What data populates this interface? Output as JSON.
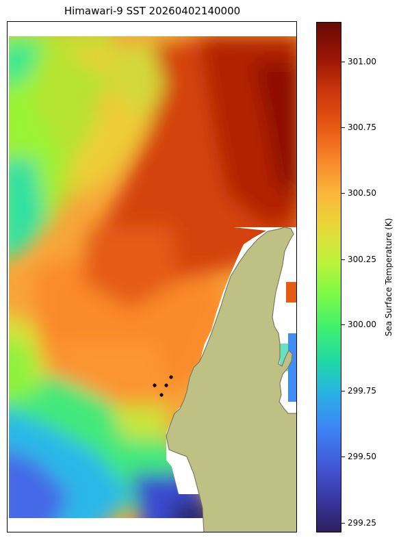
{
  "title": "Himawari-9 SST 20260402140000",
  "colorbar": {
    "label": "Sea Surface Temperature (K)",
    "range": [
      299.2,
      301.15
    ],
    "ticks": [
      "301.00",
      "300.75",
      "300.50",
      "300.25",
      "300.00",
      "299.75",
      "299.50",
      "299.25"
    ],
    "colormap": "turbo"
  },
  "map": {
    "land_color": "#bfc184",
    "coast_color": "#7a7a60",
    "marker_color": "#000000",
    "markers_count": 4
  }
}
